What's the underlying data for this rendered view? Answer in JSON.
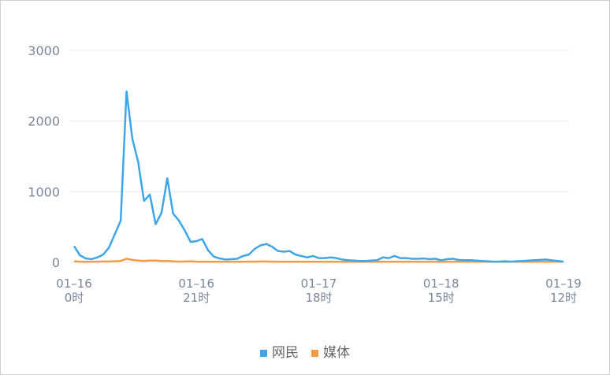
{
  "chart_data": {
    "type": "line",
    "categories": [
      "01–16 0时",
      null,
      null,
      null,
      null,
      null,
      null,
      null,
      null,
      null,
      null,
      null,
      null,
      null,
      null,
      null,
      null,
      null,
      null,
      null,
      null,
      "01–16 21时",
      null,
      null,
      null,
      null,
      null,
      null,
      null,
      null,
      null,
      null,
      null,
      null,
      null,
      null,
      null,
      null,
      null,
      null,
      null,
      null,
      "01–17 18时",
      null,
      null,
      null,
      null,
      null,
      null,
      null,
      null,
      null,
      null,
      null,
      null,
      null,
      null,
      null,
      null,
      null,
      null,
      null,
      null,
      "01–18 15时",
      null,
      null,
      null,
      null,
      null,
      null,
      null,
      null,
      null,
      null,
      null,
      null,
      null,
      null,
      null,
      null,
      null,
      null,
      null,
      null,
      "01–19 12时"
    ],
    "series": [
      {
        "name": "网民",
        "color": "#3ea6e8",
        "values": [
          230,
          100,
          55,
          45,
          70,
          110,
          210,
          400,
          590,
          2420,
          1750,
          1420,
          870,
          960,
          540,
          700,
          1190,
          690,
          590,
          450,
          290,
          300,
          330,
          170,
          80,
          55,
          40,
          45,
          50,
          90,
          110,
          190,
          240,
          260,
          220,
          160,
          150,
          160,
          110,
          90,
          70,
          90,
          60,
          60,
          70,
          60,
          40,
          30,
          25,
          20,
          20,
          25,
          30,
          70,
          60,
          90,
          60,
          60,
          50,
          50,
          55,
          45,
          50,
          30,
          45,
          50,
          35,
          30,
          30,
          25,
          20,
          15,
          10,
          10,
          15,
          10,
          15,
          20,
          25,
          30,
          35,
          40,
          30,
          20,
          10
        ]
      },
      {
        "name": "媒体",
        "color": "#f59a45",
        "values": [
          15,
          10,
          8,
          8,
          10,
          12,
          12,
          15,
          20,
          50,
          35,
          25,
          20,
          25,
          25,
          20,
          20,
          15,
          10,
          12,
          15,
          10,
          8,
          8,
          8,
          8,
          8,
          8,
          8,
          8,
          10,
          10,
          12,
          12,
          10,
          8,
          8,
          8,
          8,
          8,
          8,
          8,
          8,
          8,
          8,
          8,
          8,
          8,
          8,
          8,
          8,
          8,
          8,
          8,
          8,
          8,
          8,
          8,
          8,
          8,
          8,
          8,
          8,
          8,
          8,
          8,
          8,
          8,
          8,
          8,
          8,
          8,
          8,
          8,
          8,
          8,
          8,
          8,
          8,
          8,
          8,
          8,
          8,
          8,
          8
        ]
      }
    ],
    "ylim": [
      0,
      3000
    ],
    "yticks": [
      0,
      1000,
      2000,
      3000
    ],
    "grid": true,
    "legend": "bottom"
  }
}
